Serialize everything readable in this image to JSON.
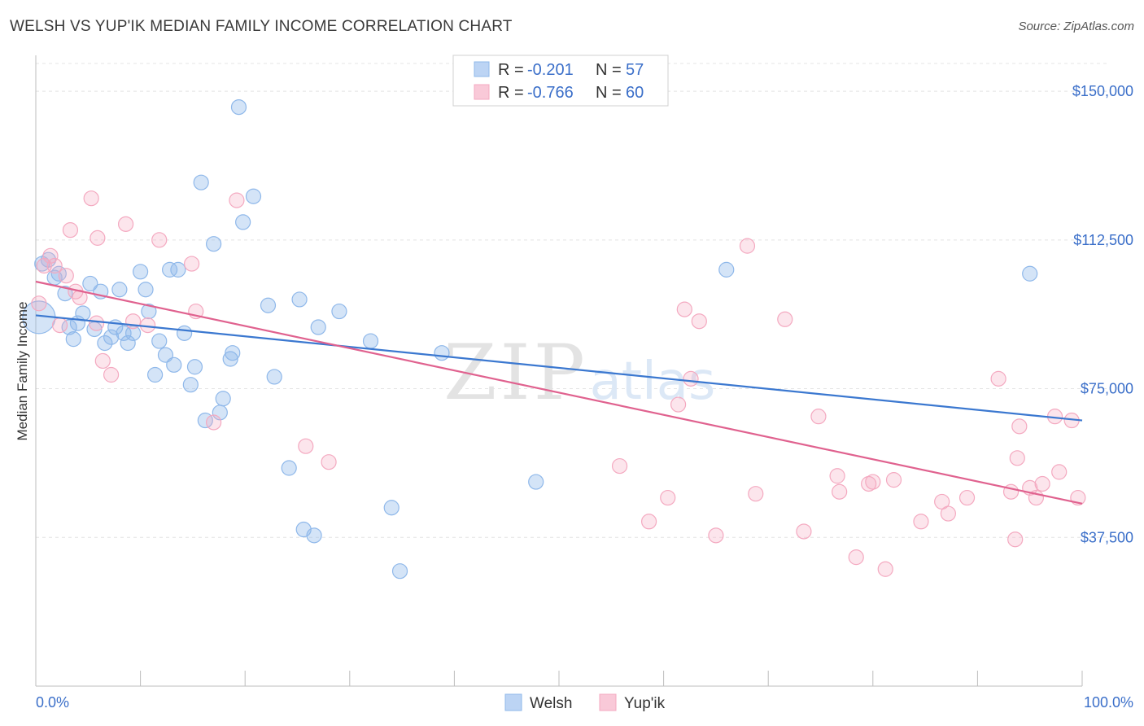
{
  "title": "WELSH VS YUP'IK MEDIAN FAMILY INCOME CORRELATION CHART",
  "source": "Source: ZipAtlas.com",
  "watermark": {
    "zip": "ZIP",
    "atlas": "atlas"
  },
  "chart_data": {
    "type": "scatter",
    "title": "WELSH VS YUP'IK MEDIAN FAMILY INCOME CORRELATION CHART",
    "xlabel": "",
    "ylabel": "Median Family Income",
    "xlim": [
      0,
      100
    ],
    "ylim": [
      0,
      157000
    ],
    "x_tick_labels": [
      "0.0%",
      "100.0%"
    ],
    "y_ticks": [
      37500,
      75000,
      112500,
      150000
    ],
    "y_tick_labels": [
      "$37,500",
      "$75,000",
      "$112,500",
      "$150,000"
    ],
    "grid": true,
    "legend_position": "top-center",
    "series": [
      {
        "name": "Welsh",
        "color": "#8fb8ea",
        "line_color": "#3b78d0",
        "R": "-0.201",
        "N": "57",
        "trend": {
          "x": [
            0,
            100
          ],
          "y": [
            93500,
            67000
          ]
        },
        "points": [
          [
            0.6,
            106.5
          ],
          [
            1.2,
            107.5
          ],
          [
            1.8,
            103
          ],
          [
            2.2,
            104
          ],
          [
            2.8,
            99
          ],
          [
            3.2,
            90.5
          ],
          [
            3.6,
            87.5
          ],
          [
            4.0,
            91.5
          ],
          [
            4.5,
            94
          ],
          [
            5.2,
            101.5
          ],
          [
            5.6,
            90
          ],
          [
            6.2,
            99.5
          ],
          [
            6.6,
            86.5
          ],
          [
            7.2,
            88
          ],
          [
            7.6,
            90.5
          ],
          [
            8.0,
            100
          ],
          [
            8.4,
            89
          ],
          [
            8.8,
            86.5
          ],
          [
            9.3,
            89
          ],
          [
            10.0,
            104.5
          ],
          [
            10.5,
            100
          ],
          [
            10.8,
            94.5
          ],
          [
            11.4,
            78.5
          ],
          [
            11.8,
            87
          ],
          [
            12.4,
            83.5
          ],
          [
            12.8,
            105
          ],
          [
            13.2,
            81
          ],
          [
            13.6,
            105
          ],
          [
            14.2,
            89
          ],
          [
            14.8,
            76
          ],
          [
            15.2,
            80.5
          ],
          [
            15.8,
            127
          ],
          [
            16.2,
            67
          ],
          [
            17.0,
            111.5
          ],
          [
            17.6,
            69
          ],
          [
            17.9,
            72.5
          ],
          [
            18.6,
            82.5
          ],
          [
            18.8,
            84
          ],
          [
            19.4,
            146
          ],
          [
            19.8,
            117
          ],
          [
            20.8,
            123.5
          ],
          [
            22.2,
            96
          ],
          [
            22.8,
            78
          ],
          [
            24.2,
            55
          ],
          [
            25.2,
            97.5
          ],
          [
            25.6,
            39.5
          ],
          [
            26.6,
            38
          ],
          [
            27.0,
            90.5
          ],
          [
            29.0,
            94.5
          ],
          [
            32.0,
            87
          ],
          [
            34.0,
            45
          ],
          [
            34.8,
            29
          ],
          [
            38.8,
            84
          ],
          [
            47.8,
            51.5
          ],
          [
            66.0,
            105
          ],
          [
            95.0,
            104
          ],
          [
            0.3,
            93
          ]
        ]
      },
      {
        "name": "Yup'ik",
        "color": "#f4a9c0",
        "line_color": "#e0628f",
        "R": "-0.766",
        "N": "60",
        "trend": {
          "x": [
            0,
            100
          ],
          "y": [
            102000,
            46000
          ]
        },
        "points": [
          [
            0.3,
            96.5
          ],
          [
            0.8,
            106
          ],
          [
            1.4,
            108.5
          ],
          [
            1.8,
            106
          ],
          [
            2.3,
            91
          ],
          [
            2.9,
            103.5
          ],
          [
            3.3,
            115
          ],
          [
            3.8,
            99.5
          ],
          [
            4.2,
            98
          ],
          [
            5.3,
            123
          ],
          [
            5.8,
            91.5
          ],
          [
            5.9,
            113
          ],
          [
            6.4,
            82
          ],
          [
            7.2,
            78.5
          ],
          [
            8.6,
            116.5
          ],
          [
            9.3,
            92
          ],
          [
            10.7,
            91
          ],
          [
            11.8,
            112.5
          ],
          [
            14.9,
            106.5
          ],
          [
            15.3,
            94.5
          ],
          [
            17.0,
            66.5
          ],
          [
            19.2,
            122.5
          ],
          [
            25.8,
            60.5
          ],
          [
            28.0,
            56.5
          ],
          [
            55.8,
            55.5
          ],
          [
            58.6,
            41.5
          ],
          [
            60.4,
            47.5
          ],
          [
            61.4,
            71
          ],
          [
            62.0,
            95
          ],
          [
            62.6,
            77.5
          ],
          [
            63.4,
            92
          ],
          [
            65.0,
            38
          ],
          [
            68.0,
            111
          ],
          [
            68.8,
            48.5
          ],
          [
            71.6,
            92.5
          ],
          [
            73.4,
            39
          ],
          [
            74.8,
            68
          ],
          [
            76.6,
            53
          ],
          [
            76.8,
            49
          ],
          [
            78.4,
            32.5
          ],
          [
            79.6,
            51
          ],
          [
            80.0,
            51.5
          ],
          [
            81.2,
            29.5
          ],
          [
            82.0,
            52
          ],
          [
            84.6,
            41.5
          ],
          [
            86.6,
            46.5
          ],
          [
            87.2,
            43.5
          ],
          [
            89.0,
            47.5
          ],
          [
            92.0,
            77.5
          ],
          [
            93.2,
            49
          ],
          [
            93.6,
            37
          ],
          [
            93.8,
            57.5
          ],
          [
            94.0,
            65.5
          ],
          [
            95.0,
            50
          ],
          [
            95.6,
            47.5
          ],
          [
            96.2,
            51
          ],
          [
            97.4,
            68
          ],
          [
            97.8,
            54
          ],
          [
            99.0,
            67
          ],
          [
            99.6,
            47.5
          ]
        ]
      }
    ]
  }
}
